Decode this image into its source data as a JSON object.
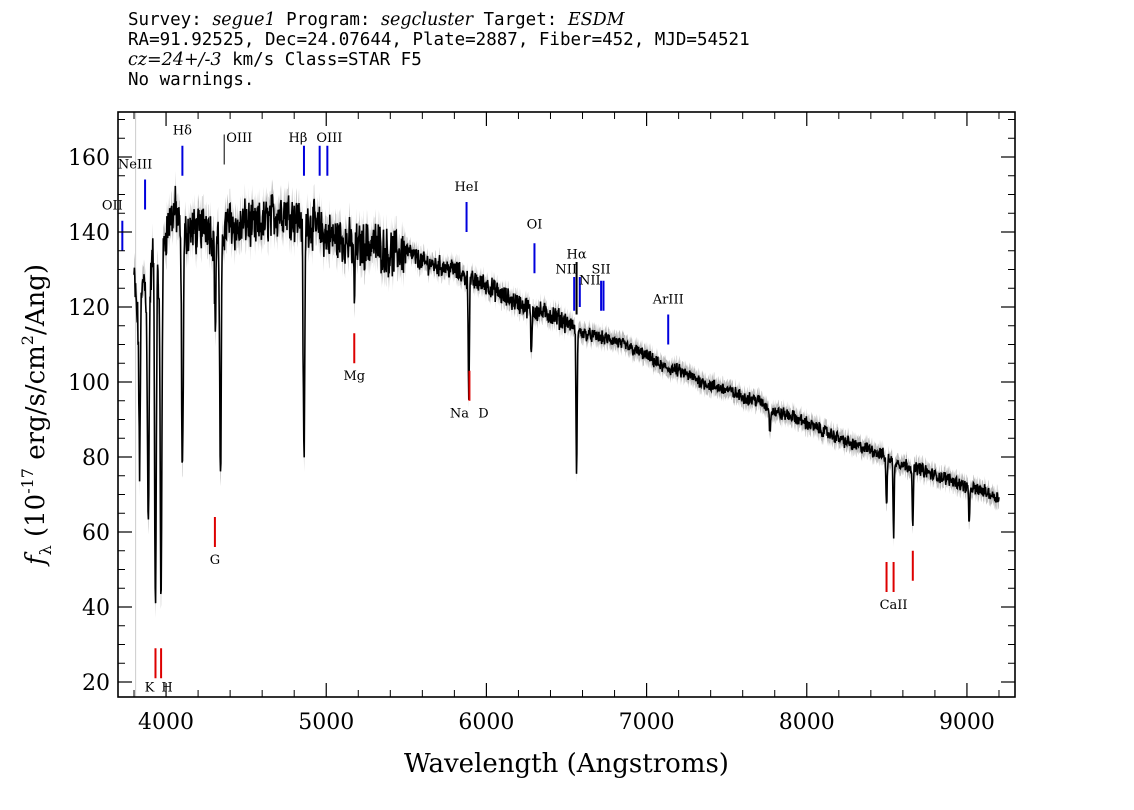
{
  "header": {
    "survey_key": "Survey:",
    "survey": "segue1",
    "program_key": "Program:",
    "program": "segcluster",
    "target_key": "Target:",
    "target": "ESDM",
    "line2": "RA=91.92525, Dec=24.07644, Plate=2887, Fiber=452, MJD=54521",
    "cz": "cz=24+/-3",
    "cz_rest": " km/s Class=STAR F5",
    "line4": "No warnings."
  },
  "chart_data": {
    "type": "line",
    "title": "",
    "xlabel": "Wavelength (Angstroms)",
    "ylabel": "f_λ (10^-17 erg/s/cm^2/Ang)",
    "xlim": [
      3700,
      9300
    ],
    "ylim": [
      16,
      172
    ],
    "x_ticks": [
      4000,
      5000,
      6000,
      7000,
      8000,
      9000
    ],
    "y_ticks": [
      20,
      40,
      60,
      80,
      100,
      120,
      140,
      160
    ],
    "x_tick_labels": [
      "4000",
      "5000",
      "6000",
      "7000",
      "8000",
      "9000"
    ],
    "y_tick_labels": [
      "20",
      "40",
      "60",
      "80",
      "100",
      "120",
      "140",
      "160"
    ],
    "colors": {
      "spectrum": "#000000",
      "error": "#bbbbbb",
      "emission": "#0000dd",
      "absorption": "#dd0000"
    },
    "series": [
      {
        "x": [
          3800,
          3830,
          3860,
          3890,
          3920,
          3960,
          3990,
          4020,
          4060,
          4100,
          4150,
          4200,
          4250,
          4300,
          4350,
          4400,
          4450,
          4500,
          4550,
          4600,
          4650,
          4700,
          4750,
          4800,
          4860,
          4920,
          5000,
          5100,
          5200,
          5300,
          5400,
          5500,
          5600,
          5700,
          5800,
          5900,
          6000,
          6100,
          6200,
          6300,
          6400,
          6500,
          6600,
          6700,
          6800,
          6900,
          7000,
          7100,
          7200,
          7300,
          7400,
          7500,
          7600,
          7700,
          7800,
          7900,
          8000,
          8100,
          8200,
          8300,
          8400,
          8500,
          8600,
          8700,
          8800,
          8900,
          9000,
          9100,
          9200
        ],
        "values": [
          128,
          112,
          128,
          120,
          135,
          125,
          138,
          143,
          146,
          138,
          141,
          140,
          143,
          138,
          140,
          143,
          140,
          143,
          141,
          142,
          144,
          145,
          146,
          144,
          143,
          142,
          139,
          138,
          136,
          137,
          134,
          135,
          132,
          131,
          130,
          127,
          126,
          123,
          121,
          119,
          118,
          116,
          113,
          112,
          111,
          109,
          107,
          104,
          103,
          101,
          99,
          98,
          96,
          95,
          92,
          91,
          89,
          87,
          85,
          83,
          82,
          80,
          78,
          77,
          75,
          74,
          72,
          71,
          69
        ]
      }
    ],
    "absorption_dips": [
      {
        "x": 3934,
        "depth": 92
      },
      {
        "x": 3969,
        "depth": 88
      },
      {
        "x": 3835,
        "depth": 40
      },
      {
        "x": 3889,
        "depth": 60
      },
      {
        "x": 4102,
        "depth": 64
      },
      {
        "x": 4307,
        "depth": 26
      },
      {
        "x": 4340,
        "depth": 68
      },
      {
        "x": 4861,
        "depth": 64
      },
      {
        "x": 5175,
        "depth": 14
      },
      {
        "x": 5890,
        "depth": 30
      },
      {
        "x": 6280,
        "depth": 12
      },
      {
        "x": 6563,
        "depth": 40
      },
      {
        "x": 7770,
        "depth": 6
      },
      {
        "x": 8498,
        "depth": 14
      },
      {
        "x": 8542,
        "depth": 20
      },
      {
        "x": 8662,
        "depth": 16
      },
      {
        "x": 9015,
        "depth": 10
      }
    ],
    "emission_lines": [
      {
        "label": "OII",
        "x": 3727
      },
      {
        "label": "NeIII",
        "x": 3869
      },
      {
        "label": "Hδ",
        "x": 4102
      },
      {
        "label": "OIII",
        "x": 4363
      },
      {
        "label": "Hβ",
        "x": 4861
      },
      {
        "label": "OIII",
        "x": 4959
      },
      {
        "label": "OIII",
        "x": 5007
      },
      {
        "label": "HeI",
        "x": 5876
      },
      {
        "label": "OI",
        "x": 6300
      },
      {
        "label": "NII",
        "x": 6548
      },
      {
        "label": "Hα",
        "x": 6563
      },
      {
        "label": "NII",
        "x": 6583
      },
      {
        "label": "SII",
        "x": 6716
      },
      {
        "label": "SII",
        "x": 6731
      },
      {
        "label": "ArIII",
        "x": 7135
      }
    ],
    "absorption_lines": [
      {
        "label": "K",
        "x": 3934
      },
      {
        "label": "H",
        "x": 3969
      },
      {
        "label": "G",
        "x": 4305
      },
      {
        "label": "Mg",
        "x": 5175
      },
      {
        "label": "Na",
        "x": 5894
      },
      {
        "label": "D",
        "x": 5894
      },
      {
        "label": "CaII",
        "x": 8498
      },
      {
        "label": "CaII",
        "x": 8542
      },
      {
        "label": "CaII",
        "x": 8662
      }
    ]
  }
}
